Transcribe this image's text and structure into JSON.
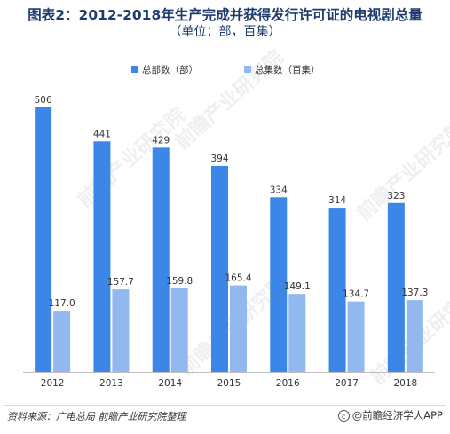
{
  "title": "图表2：2012-2018年生产完成并获得发行许可证的电视剧总量",
  "subtitle": "（单位：部，百集）",
  "source": "资料来源：广电总局 前瞻产业研究院整理",
  "brand": "@前瞻经济学人APP",
  "brand_icon": "copyright-icon",
  "watermark": "前瞻产业研究院",
  "colors": {
    "series1": "#3b86e6",
    "series2": "#91b8ef"
  },
  "chart_data": {
    "type": "bar",
    "categories": [
      "2012",
      "2013",
      "2014",
      "2015",
      "2016",
      "2017",
      "2018"
    ],
    "series": [
      {
        "name": "总部数（部）",
        "values": [
          506,
          441,
          429,
          394,
          334,
          314,
          323
        ],
        "labels": [
          "506",
          "441",
          "429",
          "394",
          "334",
          "314",
          "323"
        ]
      },
      {
        "name": "总集数（百集）",
        "values": [
          117.0,
          157.7,
          159.8,
          165.4,
          149.1,
          134.7,
          137.3
        ],
        "labels": [
          "117.0",
          "157.7",
          "159.8",
          "165.4",
          "149.1",
          "134.7",
          "137.3"
        ]
      }
    ],
    "ylim": [
      0,
      506
    ],
    "legend_position": "top-center",
    "grid": false
  }
}
